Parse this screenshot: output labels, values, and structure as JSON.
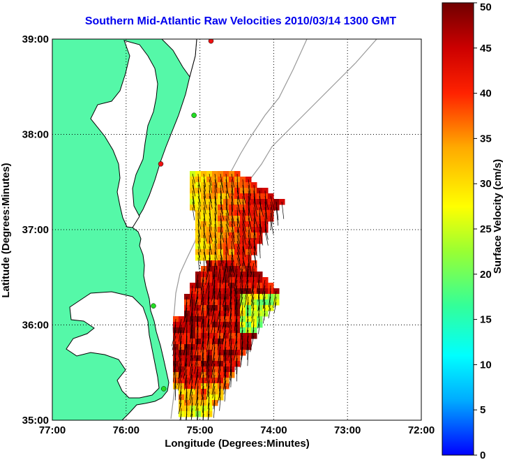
{
  "title": "Southern Mid-Atlantic Raw Velocities 2010/03/14 1300 GMT",
  "axes": {
    "xlabel": "Longitude (Degrees:Minutes)",
    "ylabel": "Latitude (Degrees:Minutes)",
    "x_ticks": [
      "77:00",
      "76:00",
      "75:00",
      "74:00",
      "73:00",
      "72:00"
    ],
    "y_ticks": [
      "39:00",
      "38:00",
      "37:00",
      "36:00",
      "35:00"
    ]
  },
  "colorbar": {
    "label": "Surface Velocity (cm/s)",
    "ticks": [
      "0",
      "5",
      "10",
      "15",
      "20",
      "25",
      "30",
      "35",
      "40",
      "45",
      "50"
    ],
    "range": [
      0,
      50
    ],
    "units": "cm/s"
  },
  "chart_data": {
    "type": "heatmap",
    "title": "Southern Mid-Atlantic Raw Velocities 2010/03/14 1300 GMT",
    "xlabel": "Longitude (Degrees:Minutes)",
    "ylabel": "Latitude (Degrees:Minutes)",
    "xlim": [
      -77.0,
      -72.0
    ],
    "ylim": [
      35.0,
      39.0
    ],
    "grid": true,
    "colorbar_range": [
      0,
      50
    ],
    "land_color": "#55f8a8",
    "station_colors": {
      "active": "#22dd22",
      "inactive": "#ee1111"
    },
    "stations": [
      {
        "lon": -74.85,
        "lat": 38.98,
        "status": "inactive"
      },
      {
        "lon": -75.08,
        "lat": 38.2,
        "status": "active"
      },
      {
        "lon": -75.53,
        "lat": 37.69,
        "status": "inactive"
      },
      {
        "lon": -75.63,
        "lat": 36.2,
        "status": "active"
      },
      {
        "lon": -75.49,
        "lat": 35.33,
        "status": "active"
      }
    ]
  }
}
